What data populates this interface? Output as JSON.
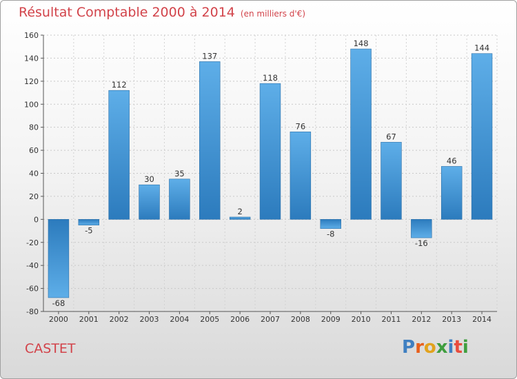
{
  "title": "Résultat Comptable 2000 à 2014",
  "subtitle": "(en milliers d'€)",
  "commune": "CASTET",
  "logo": {
    "text": "Proxiti",
    "colors": [
      "#3f7fc1",
      "#e8601c",
      "#e2a21d",
      "#3f9e3f",
      "#3f7fc1",
      "#e84c3d",
      "#3f9e3f"
    ]
  },
  "chart_data": {
    "type": "bar",
    "categories": [
      "2000",
      "2001",
      "2002",
      "2003",
      "2004",
      "2005",
      "2006",
      "2007",
      "2008",
      "2009",
      "2010",
      "2011",
      "2012",
      "2013",
      "2014"
    ],
    "values": [
      -68,
      -5,
      112,
      30,
      35,
      137,
      2,
      118,
      76,
      -8,
      148,
      67,
      -16,
      46,
      144
    ],
    "ylim": [
      -80,
      160
    ],
    "yticks": [
      -80,
      -60,
      -40,
      -20,
      0,
      20,
      40,
      60,
      80,
      100,
      120,
      140,
      160
    ],
    "grid": true,
    "bar_color_light": "#5eaee8",
    "bar_color_dark": "#2c7bbd"
  }
}
